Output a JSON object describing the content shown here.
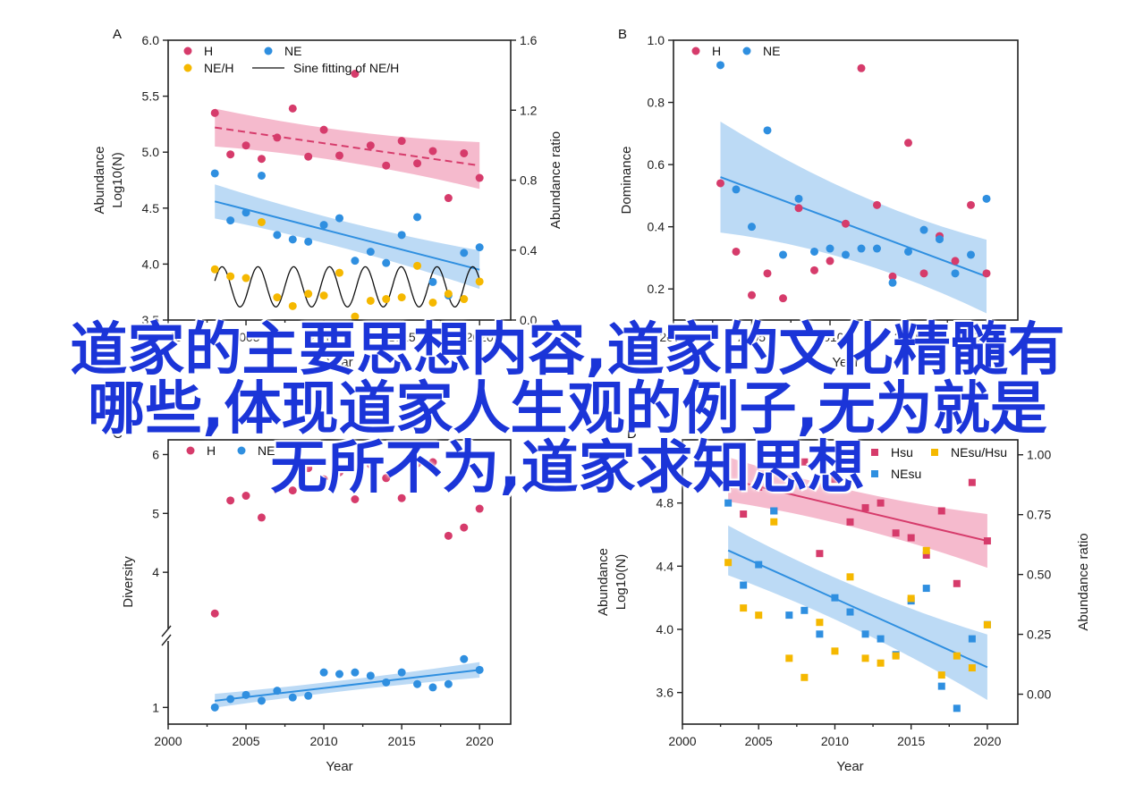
{
  "watermark": {
    "line1": "道家的主要思想内容,道家的文化精髓有",
    "line2": "哪些,体现道家人生观的例子,无为就是",
    "line3": "无所不为,道家求知思想"
  },
  "colors": {
    "H": "#d63b6b",
    "NE": "#2f8fe0",
    "NEH": "#f5b800",
    "fit": "#111111",
    "band_H": "#f2a3bc",
    "band_NE": "#a6cdf2"
  },
  "chart_data": [
    {
      "panel": "A",
      "type": "scatter",
      "xlabel": "Year",
      "ylabel": "Abundance",
      "ylabel_sub": "Log10(N)",
      "ylabel_right": "Abundance ratio",
      "xlim": [
        2000,
        2022
      ],
      "ylim": [
        3.5,
        6.0
      ],
      "ylim_right": [
        0.0,
        1.6
      ],
      "xticks": [
        "2000",
        "2005",
        "2010",
        "2015",
        "2020"
      ],
      "yticks": [
        "3.5",
        "4.0",
        "4.5",
        "5.0",
        "5.5",
        "6.0"
      ],
      "yticks_right": [
        "0.0",
        "0.4",
        "0.8",
        "1.2",
        "1.6"
      ],
      "legend": [
        "H",
        "NE",
        "NE/H",
        "Sine fitting of NE/H"
      ],
      "series": [
        {
          "name": "H",
          "axis": "left",
          "x": [
            2003,
            2004,
            2005,
            2006,
            2007,
            2008,
            2009,
            2010,
            2011,
            2012,
            2013,
            2014,
            2015,
            2016,
            2017,
            2018,
            2019,
            2020
          ],
          "y": [
            5.35,
            4.98,
            5.06,
            4.94,
            5.13,
            5.39,
            4.96,
            5.2,
            4.97,
            5.7,
            5.06,
            4.88,
            5.1,
            4.9,
            5.01,
            4.59,
            4.99,
            4.77
          ],
          "fit": [
            5.22,
            4.88
          ],
          "band": [
            0.12,
            0.16
          ]
        },
        {
          "name": "NE",
          "axis": "left",
          "x": [
            2003,
            2004,
            2005,
            2006,
            2007,
            2008,
            2009,
            2010,
            2011,
            2012,
            2013,
            2014,
            2015,
            2016,
            2017,
            2018,
            2019,
            2020
          ],
          "y": [
            4.81,
            4.39,
            4.46,
            4.79,
            4.26,
            4.22,
            4.2,
            4.35,
            4.41,
            4.03,
            4.11,
            4.01,
            4.26,
            4.42,
            3.84,
            3.72,
            4.1,
            4.15
          ],
          "fit": [
            4.56,
            3.95
          ],
          "band": [
            0.11,
            0.13
          ]
        },
        {
          "name": "NE/H",
          "axis": "right",
          "x": [
            2003,
            2004,
            2005,
            2006,
            2007,
            2008,
            2009,
            2010,
            2011,
            2012,
            2013,
            2014,
            2015,
            2016,
            2017,
            2018,
            2019,
            2020
          ],
          "y": [
            0.29,
            0.25,
            0.24,
            0.56,
            0.13,
            0.08,
            0.15,
            0.14,
            0.27,
            0.02,
            0.11,
            0.12,
            0.13,
            0.31,
            0.1,
            0.15,
            0.12,
            0.22
          ]
        },
        {
          "name": "Sine fitting of NE/H",
          "axis": "right",
          "kind": "sine",
          "mean": 0.19,
          "amplitude": 0.115,
          "period_years": 2.3,
          "x_range": [
            2003,
            2020
          ]
        }
      ]
    },
    {
      "panel": "B",
      "type": "scatter",
      "xlabel": "Year",
      "ylabel": "Dominance",
      "xlim": [
        2000,
        2022
      ],
      "ylim": [
        0.1,
        1.0
      ],
      "xticks": [
        "2000",
        "2005",
        "2010",
        "2015",
        "2020"
      ],
      "yticks": [
        "0.2",
        "0.4",
        "0.6",
        "0.8",
        "1.0"
      ],
      "legend": [
        "H",
        "NE"
      ],
      "series": [
        {
          "name": "H",
          "x": [
            2003,
            2004,
            2005,
            2006,
            2007,
            2008,
            2009,
            2010,
            2011,
            2012,
            2013,
            2014,
            2015,
            2016,
            2017,
            2018,
            2019,
            2020
          ],
          "y": [
            0.54,
            0.32,
            0.18,
            0.25,
            0.17,
            0.46,
            0.26,
            0.29,
            0.41,
            0.91,
            0.47,
            0.24,
            0.67,
            0.25,
            0.37,
            0.29,
            0.47,
            0.25
          ]
        },
        {
          "name": "NE",
          "x": [
            2003,
            2004,
            2005,
            2006,
            2007,
            2008,
            2009,
            2010,
            2011,
            2012,
            2013,
            2014,
            2015,
            2016,
            2017,
            2018,
            2019,
            2020
          ],
          "y": [
            0.92,
            0.52,
            0.4,
            0.71,
            0.31,
            0.49,
            0.32,
            0.33,
            0.31,
            0.33,
            0.33,
            0.22,
            0.32,
            0.39,
            0.36,
            0.25,
            0.31,
            0.49
          ],
          "fit": [
            0.56,
            0.24
          ],
          "band": [
            0.14,
            0.08
          ]
        }
      ]
    },
    {
      "panel": "C",
      "type": "scatter",
      "xlabel": "Year",
      "ylabel": "Diversity",
      "xlim": [
        2000,
        2022
      ],
      "axis_break": true,
      "xticks": [
        "2000",
        "2005",
        "2010",
        "2015",
        "2020"
      ],
      "yticks": [
        "1",
        "4",
        "5",
        "6"
      ],
      "legend": [
        "H",
        "NE"
      ],
      "series": [
        {
          "name": "H",
          "x": [
            2003,
            2004,
            2005,
            2006,
            2007,
            2008,
            2009,
            2010,
            2011,
            2012,
            2013,
            2014,
            2015,
            2016,
            2017,
            2018,
            2019,
            2020
          ],
          "y": [
            3.3,
            5.22,
            5.3,
            4.93,
            5.4,
            5.39,
            5.77,
            5.58,
            5.7,
            5.24,
            5.83,
            5.6,
            5.26,
            5.85,
            5.87,
            4.62,
            4.76,
            5.08
          ]
        },
        {
          "name": "NE",
          "x": [
            2003,
            2004,
            2005,
            2006,
            2007,
            2008,
            2009,
            2010,
            2011,
            2012,
            2013,
            2014,
            2015,
            2016,
            2017,
            2018,
            2019,
            2020
          ],
          "y": [
            1.0,
            1.1,
            1.15,
            1.08,
            1.2,
            1.12,
            1.14,
            1.42,
            1.4,
            1.42,
            1.38,
            1.3,
            1.42,
            1.28,
            1.24,
            1.28,
            1.58,
            1.45
          ],
          "fit": [
            1.08,
            1.45
          ],
          "band": [
            0.06,
            0.07
          ]
        }
      ]
    },
    {
      "panel": "D",
      "type": "scatter",
      "xlabel": "Year",
      "ylabel": "Abundance",
      "ylabel_sub": "Log10(N)",
      "ylabel_right": "Abundance ratio",
      "xlim": [
        2000,
        2022
      ],
      "ylim": [
        3.4,
        5.2
      ],
      "ylim_right": [
        -0.125,
        1.0625
      ],
      "xticks": [
        "2000",
        "2005",
        "2010",
        "2015",
        "2020"
      ],
      "yticks": [
        "3.6",
        "4.0",
        "4.4",
        "4.8"
      ],
      "yticks_right": [
        "0.00",
        "0.25",
        "0.50",
        "0.75",
        "1.00"
      ],
      "legend": [
        "Hsu",
        "NEsu/Hsu",
        "NEsu"
      ],
      "series": [
        {
          "name": "Hsu",
          "axis": "left",
          "x": [
            2003,
            2004,
            2005,
            2006,
            2007,
            2008,
            2009,
            2010,
            2011,
            2012,
            2013,
            2014,
            2015,
            2016,
            2017,
            2018,
            2019,
            2020
          ],
          "y": [
            4.91,
            4.73,
            4.9,
            4.75,
            4.91,
            5.06,
            4.48,
            4.95,
            4.68,
            4.77,
            4.8,
            4.61,
            4.58,
            4.47,
            4.75,
            4.29,
            4.93,
            4.56
          ],
          "fit": [
            4.95,
            4.56
          ],
          "band": [
            0.1,
            0.13
          ]
        },
        {
          "name": "NEsu",
          "axis": "left",
          "x": [
            2003,
            2004,
            2005,
            2006,
            2007,
            2008,
            2009,
            2010,
            2011,
            2012,
            2013,
            2014,
            2015,
            2016,
            2017,
            2018,
            2019,
            2020
          ],
          "y": [
            4.8,
            4.28,
            4.41,
            4.75,
            4.09,
            4.12,
            3.97,
            4.2,
            4.11,
            3.97,
            3.94,
            3.84,
            4.18,
            4.26,
            3.64,
            3.5,
            3.94,
            4.03
          ],
          "fit": [
            4.5,
            3.76
          ],
          "band": [
            0.11,
            0.16
          ]
        },
        {
          "name": "NEsu/Hsu",
          "axis": "right",
          "x": [
            2003,
            2004,
            2005,
            2006,
            2007,
            2008,
            2009,
            2010,
            2011,
            2012,
            2013,
            2014,
            2015,
            2016,
            2017,
            2018,
            2019,
            2020
          ],
          "y": [
            0.55,
            0.36,
            0.33,
            0.72,
            0.15,
            0.07,
            0.3,
            0.18,
            0.49,
            0.15,
            0.13,
            0.16,
            0.4,
            0.6,
            0.08,
            0.16,
            0.11,
            0.29
          ]
        }
      ]
    }
  ]
}
